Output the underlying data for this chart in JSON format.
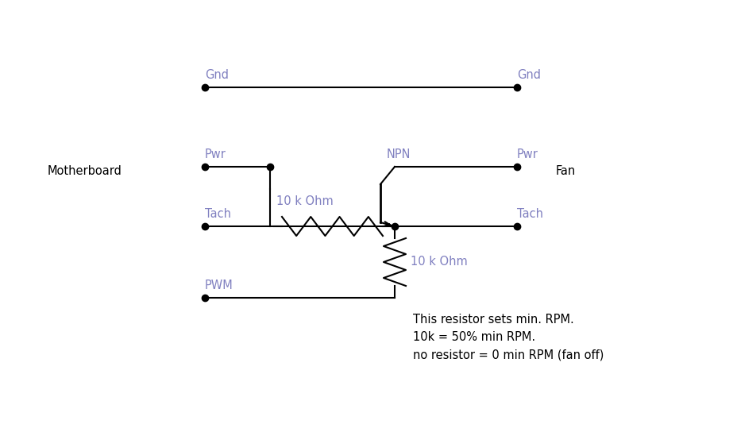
{
  "bg_color": "#ffffff",
  "label_color": "#8080c0",
  "line_color": "#000000",
  "dot_color": "#000000",
  "text_color": "#000000",
  "label_fontsize": 10.5,
  "text_fontsize": 10.5,
  "mb_label": "Motherboard",
  "fan_label": "Fan",
  "gnd_label": "Gnd",
  "pwr_label": "Pwr",
  "tach_label": "Tach",
  "pwm_label": "PWM",
  "npn_label": "NPN",
  "res1_label": "10 k Ohm",
  "res2_label": "10 k Ohm",
  "note_line1": "This resistor sets min. RPM.",
  "note_line2": "10k = 50% min RPM.",
  "note_line3": "no resistor = 0 min RPM (fan off)"
}
